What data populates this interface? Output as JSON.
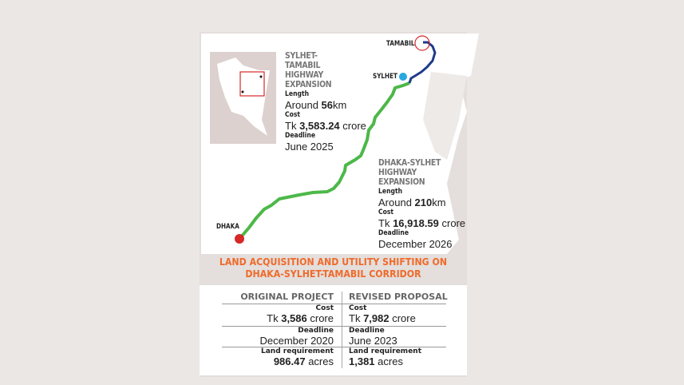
{
  "map": {
    "cities": {
      "tamabil": "TAMABIL",
      "sylhet": "SYLHET",
      "dhaka": "DHAKA"
    },
    "colors": {
      "dhaka_sylhet_route": "#4cb848",
      "sylhet_tamabil_route": "#1f3a8a",
      "dhaka_marker": "#d62828",
      "sylhet_marker": "#29a8e0",
      "tamabil_marker": "#d62828"
    },
    "sylhet_tamabil": {
      "title": "SYLHET-TAMABIL HIGHWAY EXPANSION",
      "length_label": "Length",
      "length_prefix": "Around ",
      "length_value": "56",
      "length_unit": "km",
      "cost_label": "Cost",
      "cost_prefix": "Tk ",
      "cost_value": "3,583.24",
      "cost_unit": " crore",
      "deadline_label": "Deadline",
      "deadline_value": "June 2025"
    },
    "dhaka_sylhet": {
      "title": "DHAKA-SYLHET HIGHWAY EXPANSION",
      "length_label": "Length",
      "length_prefix": "Around ",
      "length_value": "210",
      "length_unit": "km",
      "cost_label": "Cost",
      "cost_prefix": "Tk ",
      "cost_value": "16,918.59",
      "cost_unit": " crore",
      "deadline_label": "Deadline",
      "deadline_value": "December 2026"
    }
  },
  "table": {
    "title": "LAND ACQUISITION AND UTILITY SHIFTING ON DHAKA-SYLHET-TAMABIL CORRIDOR",
    "title_color": "#ef6b2b",
    "columns": [
      "ORIGINAL PROJECT",
      "REVISED PROPOSAL"
    ],
    "rows": [
      {
        "label": "Cost",
        "original": {
          "prefix": "Tk ",
          "value": "3,586",
          "suffix": " crore"
        },
        "revised": {
          "prefix": "Tk ",
          "value": "7,982",
          "suffix": " crore"
        }
      },
      {
        "label": "Deadline",
        "original": {
          "prefix": "",
          "value": "",
          "suffix": "December 2020"
        },
        "revised": {
          "prefix": "",
          "value": "",
          "suffix": "June 2023"
        }
      },
      {
        "label": "Land requirement",
        "original": {
          "prefix": "",
          "value": "986.47",
          "suffix": " acres"
        },
        "revised": {
          "prefix": "",
          "value": "1,381",
          "suffix": " acres"
        }
      }
    ]
  }
}
